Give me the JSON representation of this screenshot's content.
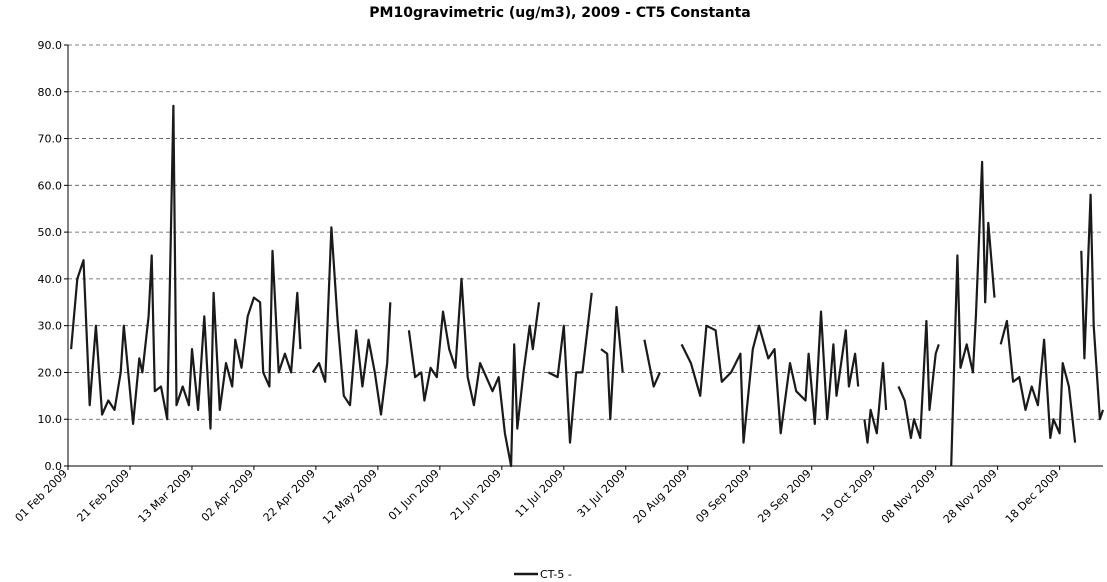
{
  "chart_data": {
    "type": "line",
    "title": "PM10gravimetric (ug/m3),  2009 - CT5 Constanta",
    "xlim": [
      0,
      334
    ],
    "xticks": [
      {
        "value": 0,
        "label": "01 Feb 2009"
      },
      {
        "value": 20,
        "label": "21 Feb 2009"
      },
      {
        "value": 40,
        "label": "13 Mar 2009"
      },
      {
        "value": 60,
        "label": "02 Apr 2009"
      },
      {
        "value": 80,
        "label": "22 Apr 2009"
      },
      {
        "value": 100,
        "label": "12 May 2009"
      },
      {
        "value": 120,
        "label": "01 Jun 2009"
      },
      {
        "value": 140,
        "label": "21 Jun 2009"
      },
      {
        "value": 160,
        "label": "11 Jul 2009"
      },
      {
        "value": 180,
        "label": "31 Jul 2009"
      },
      {
        "value": 200,
        "label": "20 Aug 2009"
      },
      {
        "value": 220,
        "label": "09 Sep 2009"
      },
      {
        "value": 240,
        "label": "29 Sep 2009"
      },
      {
        "value": 260,
        "label": "19 Oct 2009"
      },
      {
        "value": 280,
        "label": "08 Nov 2009"
      },
      {
        "value": 300,
        "label": "28 Nov 2009"
      },
      {
        "value": 320,
        "label": "18 Dec 2009"
      }
    ],
    "ylim": [
      0,
      90
    ],
    "yticks": [
      {
        "value": 0,
        "label": "0.0"
      },
      {
        "value": 10,
        "label": "10.0"
      },
      {
        "value": 20,
        "label": "20.0"
      },
      {
        "value": 30,
        "label": "30.0"
      },
      {
        "value": 40,
        "label": "40.0"
      },
      {
        "value": 50,
        "label": "50.0"
      },
      {
        "value": 60,
        "label": "60.0"
      },
      {
        "value": 70,
        "label": "70.0"
      },
      {
        "value": 80,
        "label": "80.0"
      },
      {
        "value": 90,
        "label": "90.0"
      }
    ],
    "grid": true,
    "legend": "bottom",
    "x": [
      1,
      3,
      5,
      7,
      9,
      11,
      13,
      15,
      17,
      18,
      20,
      21,
      23,
      24,
      26,
      27,
      28,
      30,
      32,
      34,
      35,
      37,
      39,
      40,
      42,
      44,
      46,
      47,
      49,
      51,
      53,
      54,
      56,
      58,
      60,
      62,
      63,
      65,
      66,
      68,
      70,
      72,
      74,
      75,
      77,
      79,
      81,
      83,
      85,
      87,
      89,
      91,
      93,
      95,
      97,
      99,
      101,
      103,
      104,
      106,
      110,
      112,
      114,
      115,
      117,
      119,
      121,
      123,
      125,
      127,
      129,
      131,
      133,
      135,
      137,
      139,
      141,
      143,
      144,
      145,
      147,
      149,
      150,
      152,
      154,
      155,
      158,
      160,
      162,
      164,
      166,
      169,
      171,
      172,
      174,
      175,
      177,
      179,
      182,
      186,
      189,
      191,
      194,
      198,
      201,
      204,
      206,
      209,
      211,
      214,
      217,
      218,
      221,
      223,
      226,
      228,
      230,
      233,
      235,
      238,
      239,
      241,
      243,
      245,
      247,
      248,
      251,
      252,
      254,
      255,
      256,
      257,
      258,
      259,
      261,
      263,
      264,
      266,
      268,
      270,
      272,
      273,
      275,
      277,
      278,
      280,
      281,
      283,
      285,
      287,
      288,
      290,
      292,
      293,
      295,
      296,
      297,
      299,
      300,
      301,
      303,
      305,
      307,
      309,
      311,
      313,
      315,
      317,
      318,
      320,
      321,
      323,
      325,
      326,
      327,
      328,
      330,
      331,
      333,
      334
    ],
    "series": [
      {
        "name": "CT-5 -",
        "color": "#1a1a1a",
        "values": [
          25,
          40,
          44,
          13,
          30,
          11,
          14,
          12,
          20,
          30,
          16,
          9,
          23,
          20,
          32,
          45,
          16,
          17,
          10,
          77,
          13,
          17,
          13,
          25,
          12,
          32,
          8,
          37,
          12,
          22,
          17,
          27,
          21,
          32,
          36,
          35,
          20,
          17,
          46,
          20,
          24,
          20,
          37,
          25,
          null,
          20,
          22,
          18,
          51,
          31,
          15,
          13,
          29,
          17,
          27,
          20,
          11,
          22,
          35,
          null,
          29,
          19,
          20,
          14,
          21,
          19,
          33,
          25,
          21,
          40,
          19,
          13,
          22,
          19,
          16,
          19,
          7,
          0,
          26,
          8,
          20,
          30,
          25,
          35,
          null,
          20,
          19,
          30,
          5,
          20,
          20,
          37,
          null,
          25,
          24,
          10,
          34,
          20,
          null,
          27,
          17,
          20,
          null,
          26,
          22,
          15,
          30,
          29,
          18,
          20,
          24,
          5,
          25,
          30,
          23,
          25,
          7,
          22,
          16,
          14,
          24,
          9,
          33,
          10,
          26,
          15,
          29,
          17,
          24,
          17,
          null,
          10,
          5,
          12,
          7,
          22,
          12,
          null,
          17,
          14,
          6,
          10,
          6,
          31,
          12,
          24,
          26,
          null,
          0,
          45,
          21,
          26,
          20,
          32,
          65,
          35,
          52,
          36,
          null,
          26,
          31,
          18,
          19,
          12,
          17,
          13,
          27,
          6,
          10,
          7,
          22,
          17,
          5,
          null,
          46,
          23,
          58,
          30,
          10,
          12
        ]
      }
    ]
  }
}
